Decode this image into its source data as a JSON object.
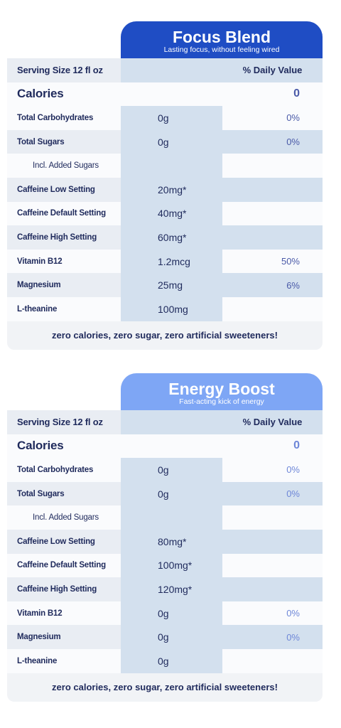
{
  "colors": {
    "focus_header": "#1f4dc4",
    "energy_header": "#7ea6f5",
    "text": "#1f2a5c"
  },
  "cards": [
    {
      "title": "Focus Blend",
      "subtitle": "Lasting focus, without feeling wired",
      "serving_label": "Serving Size  12 fl oz",
      "dv_label": "% Daily Value",
      "calories_label": "Calories",
      "calories_value": "0",
      "rows": [
        {
          "name": "Total Carbohydrates",
          "amount": "0g",
          "dv": "0%"
        },
        {
          "name": "Total Sugars",
          "amount": "0g",
          "dv": "0%"
        },
        {
          "name": "Incl. Added Sugars",
          "amount": "",
          "dv": ""
        },
        {
          "name": "Caffeine Low Setting",
          "amount": "20mg*",
          "dv": ""
        },
        {
          "name": "Caffeine Default Setting",
          "amount": "40mg*",
          "dv": ""
        },
        {
          "name": "Caffeine High Setting",
          "amount": "60mg*",
          "dv": ""
        },
        {
          "name": "Vitamin B12",
          "amount": "1.2mcg",
          "dv": "50%"
        },
        {
          "name": "Magnesium",
          "amount": "25mg",
          "dv": "6%"
        },
        {
          "name": "L-theanine",
          "amount": "100mg",
          "dv": ""
        }
      ],
      "footer": "zero calories, zero sugar, zero artificial sweeteners!"
    },
    {
      "title": "Energy Boost",
      "subtitle": "Fast-acting kick of energy",
      "serving_label": "Serving Size  12 fl oz",
      "dv_label": "% Daily Value",
      "calories_label": "Calories",
      "calories_value": "0",
      "rows": [
        {
          "name": "Total Carbohydrates",
          "amount": "0g",
          "dv": "0%"
        },
        {
          "name": "Total Sugars",
          "amount": "0g",
          "dv": "0%"
        },
        {
          "name": "Incl. Added Sugars",
          "amount": "",
          "dv": ""
        },
        {
          "name": "Caffeine Low Setting",
          "amount": "80mg*",
          "dv": ""
        },
        {
          "name": "Caffeine Default Setting",
          "amount": "100mg*",
          "dv": ""
        },
        {
          "name": "Caffeine High Setting",
          "amount": "120mg*",
          "dv": ""
        },
        {
          "name": "Vitamin B12",
          "amount": "0g",
          "dv": "0%"
        },
        {
          "name": "Magnesium",
          "amount": "0g",
          "dv": "0%"
        },
        {
          "name": "L-theanine",
          "amount": "0g",
          "dv": ""
        }
      ],
      "footer": "zero calories, zero sugar, zero artificial sweeteners!"
    }
  ]
}
